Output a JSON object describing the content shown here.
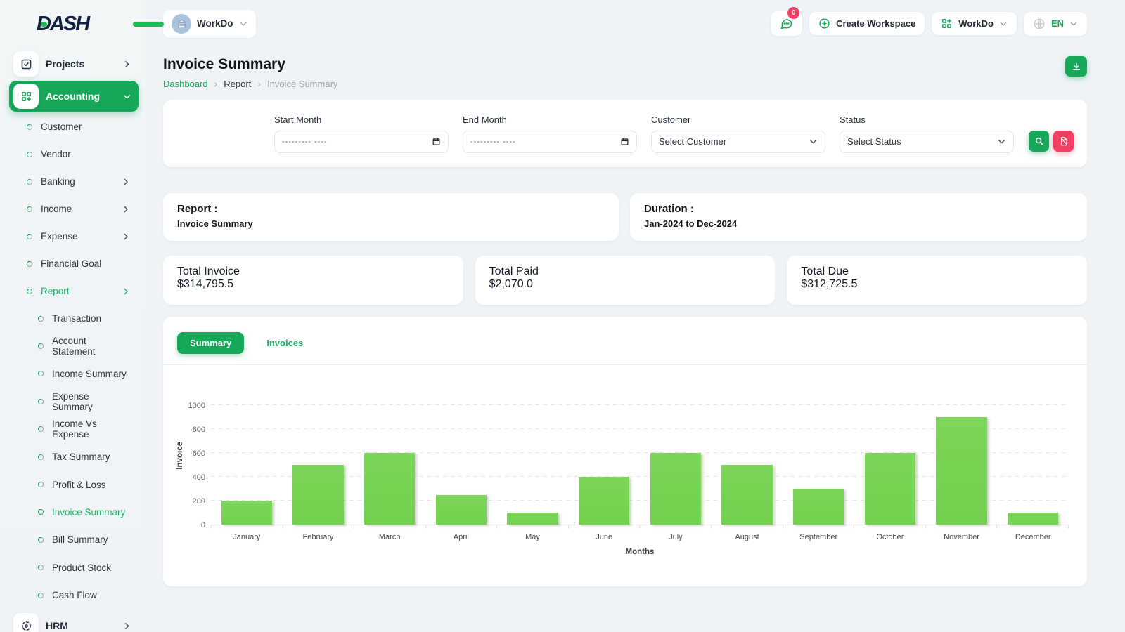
{
  "colors": {
    "primary": "#16a759",
    "bar_green": "#7cd65a",
    "danger_pink": "#f43e64",
    "logo_navy": "#13203f",
    "avatar_blue": "#a9c3da"
  },
  "brand": {
    "logo_text": "DASH"
  },
  "topbar": {
    "workspace_name": "WorkDo",
    "messages_badge": "0",
    "create_workspace_label": "Create Workspace",
    "workdo_menu_label": "WorkDo",
    "language_code": "EN"
  },
  "sidebar": {
    "projects_label": "Projects",
    "accounting_label": "Accounting",
    "hrm_label": "HRM",
    "accounting_children": [
      {
        "label": "Customer",
        "chevron": false,
        "active": false
      },
      {
        "label": "Vendor",
        "chevron": false,
        "active": false
      },
      {
        "label": "Banking",
        "chevron": true,
        "active": false
      },
      {
        "label": "Income",
        "chevron": true,
        "active": false
      },
      {
        "label": "Expense",
        "chevron": true,
        "active": false
      },
      {
        "label": "Financial Goal",
        "chevron": false,
        "active": false
      },
      {
        "label": "Report",
        "chevron": true,
        "active": true
      }
    ],
    "report_children": [
      {
        "label": "Transaction",
        "active": false
      },
      {
        "label": "Account Statement",
        "active": false
      },
      {
        "label": "Income Summary",
        "active": false
      },
      {
        "label": "Expense Summary",
        "active": false
      },
      {
        "label": "Income Vs Expense",
        "active": false
      },
      {
        "label": "Tax Summary",
        "active": false
      },
      {
        "label": "Profit & Loss",
        "active": false
      },
      {
        "label": "Invoice Summary",
        "active": true
      },
      {
        "label": "Bill Summary",
        "active": false
      },
      {
        "label": "Product Stock",
        "active": false
      },
      {
        "label": "Cash Flow",
        "active": false
      }
    ]
  },
  "page": {
    "title": "Invoice Summary",
    "breadcrumb": [
      "Dashboard",
      "Report",
      "Invoice Summary"
    ]
  },
  "filters": {
    "start_month_label": "Start Month",
    "start_month_placeholder": "--------- ----",
    "end_month_label": "End Month",
    "end_month_placeholder": "--------- ----",
    "customer_label": "Customer",
    "customer_value": "Select Customer",
    "status_label": "Status",
    "status_value": "Select Status"
  },
  "info_cards": {
    "report_label": "Report :",
    "report_value": "Invoice Summary",
    "duration_label": "Duration :",
    "duration_value": "Jan-2024 to Dec-2024"
  },
  "stat_cards": [
    {
      "label": "Total Invoice",
      "value": "$314,795.5"
    },
    {
      "label": "Total Paid",
      "value": "$2,070.0"
    },
    {
      "label": "Total Due",
      "value": "$312,725.5"
    }
  ],
  "tabs": [
    {
      "label": "Summary",
      "active": true
    },
    {
      "label": "Invoices",
      "active": false
    }
  ],
  "chart_data": {
    "type": "bar",
    "title": "",
    "categories": [
      "January",
      "February",
      "March",
      "April",
      "May",
      "June",
      "July",
      "August",
      "September",
      "October",
      "November",
      "December"
    ],
    "values": [
      200,
      500,
      600,
      250,
      100,
      400,
      600,
      500,
      300,
      600,
      900,
      100
    ],
    "xlabel": "Months",
    "ylabel": "Invoice",
    "ylim": [
      0,
      1000
    ],
    "yticks": [
      0,
      200,
      400,
      600,
      800,
      1000
    ],
    "legend": "none",
    "grid": "horizontal-dashed",
    "bar_color": "#7cd65a"
  }
}
